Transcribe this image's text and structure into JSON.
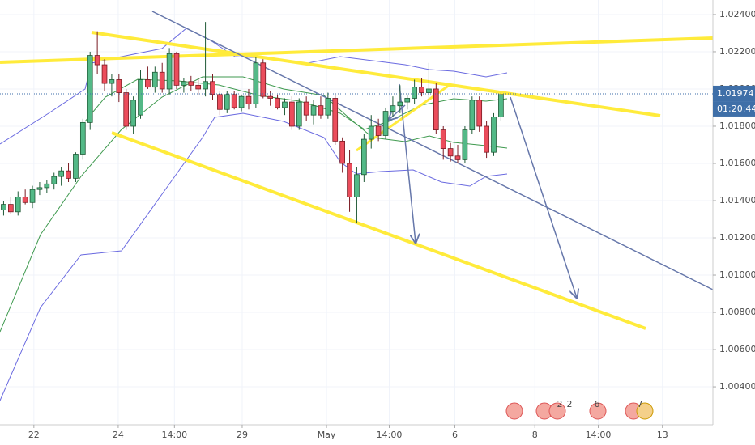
{
  "chart_data": {
    "type": "candlestick",
    "up_color": "#53b987",
    "down_color": "#eb4d5c",
    "xlim": [
      -0.5,
      98.4
    ],
    "xticks": [
      {
        "value": 4.2,
        "label": "22"
      },
      {
        "value": 15.9,
        "label": "24"
      },
      {
        "value": 23.7,
        "label": "14:00"
      },
      {
        "value": 33.1,
        "label": "29"
      },
      {
        "value": 44.8,
        "label": "May"
      },
      {
        "value": 53.5,
        "label": "14:00"
      },
      {
        "value": 62.6,
        "label": "6"
      },
      {
        "value": 73.7,
        "label": "8"
      },
      {
        "value": 82.5,
        "label": "14:00"
      },
      {
        "value": 91.4,
        "label": "13"
      }
    ],
    "ylim": [
      1.00322,
      1.02478
    ],
    "yticks": [
      {
        "value": 1.024,
        "label": "1.02400"
      },
      {
        "value": 1.022,
        "label": "1.02200"
      },
      {
        "value": 1.02,
        "label": "1.02000"
      },
      {
        "value": 1.018,
        "label": "1.01800"
      },
      {
        "value": 1.016,
        "label": "1.01600"
      },
      {
        "value": 1.014,
        "label": "1.01400"
      },
      {
        "value": 1.012,
        "label": "1.01200"
      },
      {
        "value": 1.01,
        "label": "1.01000"
      },
      {
        "value": 1.008,
        "label": "1.00800"
      },
      {
        "value": 1.006,
        "label": "1.00600"
      },
      {
        "value": 1.004,
        "label": "1.00400"
      }
    ],
    "last_price": {
      "value": 1.01974,
      "label": "1.01974"
    },
    "countdown": "01:20:44",
    "event_badges": [
      "2",
      "2",
      "6",
      "7"
    ],
    "open": [
      1.0135,
      1.0138,
      1.0134,
      1.0142,
      1.0139,
      1.0146,
      1.0147,
      1.0149,
      1.0153,
      1.0156,
      1.0152,
      1.0165,
      1.0182,
      1.0218,
      1.0213,
      1.0203,
      1.0205,
      1.0198,
      1.018,
      1.0186,
      1.0205,
      1.0201,
      1.0209,
      1.02,
      1.0219,
      1.0202,
      1.0204,
      1.0202,
      1.02,
      1.0204,
      1.0197,
      1.0189,
      1.0197,
      1.019,
      1.0196,
      1.0192,
      1.0214,
      1.0196,
      1.0195,
      1.019,
      1.0193,
      1.018,
      1.0193,
      1.0186,
      1.0191,
      1.0186,
      1.0195,
      1.0172,
      1.016,
      1.0142,
      1.0154,
      1.0173,
      1.018,
      1.0175,
      1.0188,
      1.0191,
      1.0193,
      1.0195,
      1.0201,
      1.0198,
      1.02,
      1.0178,
      1.0168,
      1.0164,
      1.0162,
      1.0178,
      1.0194,
      1.018,
      1.0166,
      1.0185
    ],
    "high": [
      1.014,
      1.0142,
      1.0145,
      1.0146,
      1.0148,
      1.015,
      1.0151,
      1.0155,
      1.0158,
      1.016,
      1.0166,
      1.0184,
      1.022,
      1.0231,
      1.0216,
      1.0208,
      1.0208,
      1.02,
      1.0196,
      1.021,
      1.0212,
      1.0212,
      1.0214,
      1.0222,
      1.022,
      1.0206,
      1.0207,
      1.0206,
      1.0236,
      1.0208,
      1.0199,
      1.0199,
      1.0199,
      1.0197,
      1.02,
      1.0217,
      1.0216,
      1.0199,
      1.0197,
      1.0195,
      1.0196,
      1.0195,
      1.0196,
      1.0194,
      1.0196,
      1.0198,
      1.0197,
      1.0174,
      1.0167,
      1.0158,
      1.0176,
      1.0186,
      1.0184,
      1.019,
      1.0196,
      1.0202,
      1.0197,
      1.0205,
      1.0206,
      1.0214,
      1.0203,
      1.018,
      1.0171,
      1.017,
      1.018,
      1.0196,
      1.0196,
      1.0183,
      1.0187,
      1.0198
    ],
    "low": [
      1.0132,
      1.0133,
      1.0132,
      1.0138,
      1.0136,
      1.0143,
      1.0144,
      1.0146,
      1.0148,
      1.015,
      1.015,
      1.0162,
      1.0178,
      1.0208,
      1.0199,
      1.0196,
      1.0193,
      1.0178,
      1.0176,
      1.0184,
      1.02,
      1.0198,
      1.0198,
      1.0197,
      1.02,
      1.0198,
      1.0199,
      1.0197,
      1.0196,
      1.0194,
      1.0186,
      1.0187,
      1.0189,
      1.0188,
      1.0189,
      1.019,
      1.0195,
      1.0191,
      1.0189,
      1.0186,
      1.0178,
      1.0178,
      1.0183,
      1.0181,
      1.0184,
      1.0184,
      1.017,
      1.0155,
      1.0134,
      1.0128,
      1.015,
      1.0168,
      1.0172,
      1.0173,
      1.0185,
      1.0187,
      1.0189,
      1.0192,
      1.0196,
      1.0194,
      1.0176,
      1.0162,
      1.0161,
      1.016,
      1.016,
      1.0176,
      1.0177,
      1.0163,
      1.0164,
      1.0183
    ],
    "close": [
      1.0138,
      1.0134,
      1.0142,
      1.0139,
      1.0146,
      1.0147,
      1.0149,
      1.0153,
      1.0156,
      1.0152,
      1.0165,
      1.0182,
      1.0218,
      1.0213,
      1.0203,
      1.0205,
      1.0198,
      1.018,
      1.0194,
      1.0205,
      1.0201,
      1.0209,
      1.02,
      1.0219,
      1.0202,
      1.0204,
      1.0202,
      1.02,
      1.0204,
      1.0197,
      1.0189,
      1.0197,
      1.019,
      1.0196,
      1.0192,
      1.0214,
      1.0196,
      1.0195,
      1.019,
      1.0193,
      1.018,
      1.0193,
      1.0186,
      1.0191,
      1.0186,
      1.0195,
      1.0172,
      1.016,
      1.0142,
      1.0154,
      1.0173,
      1.018,
      1.0175,
      1.0188,
      1.0191,
      1.0193,
      1.0195,
      1.0201,
      1.0198,
      1.02,
      1.0178,
      1.0168,
      1.0164,
      1.0162,
      1.0178,
      1.0194,
      1.018,
      1.0166,
      1.0185,
      1.0197
    ]
  }
}
